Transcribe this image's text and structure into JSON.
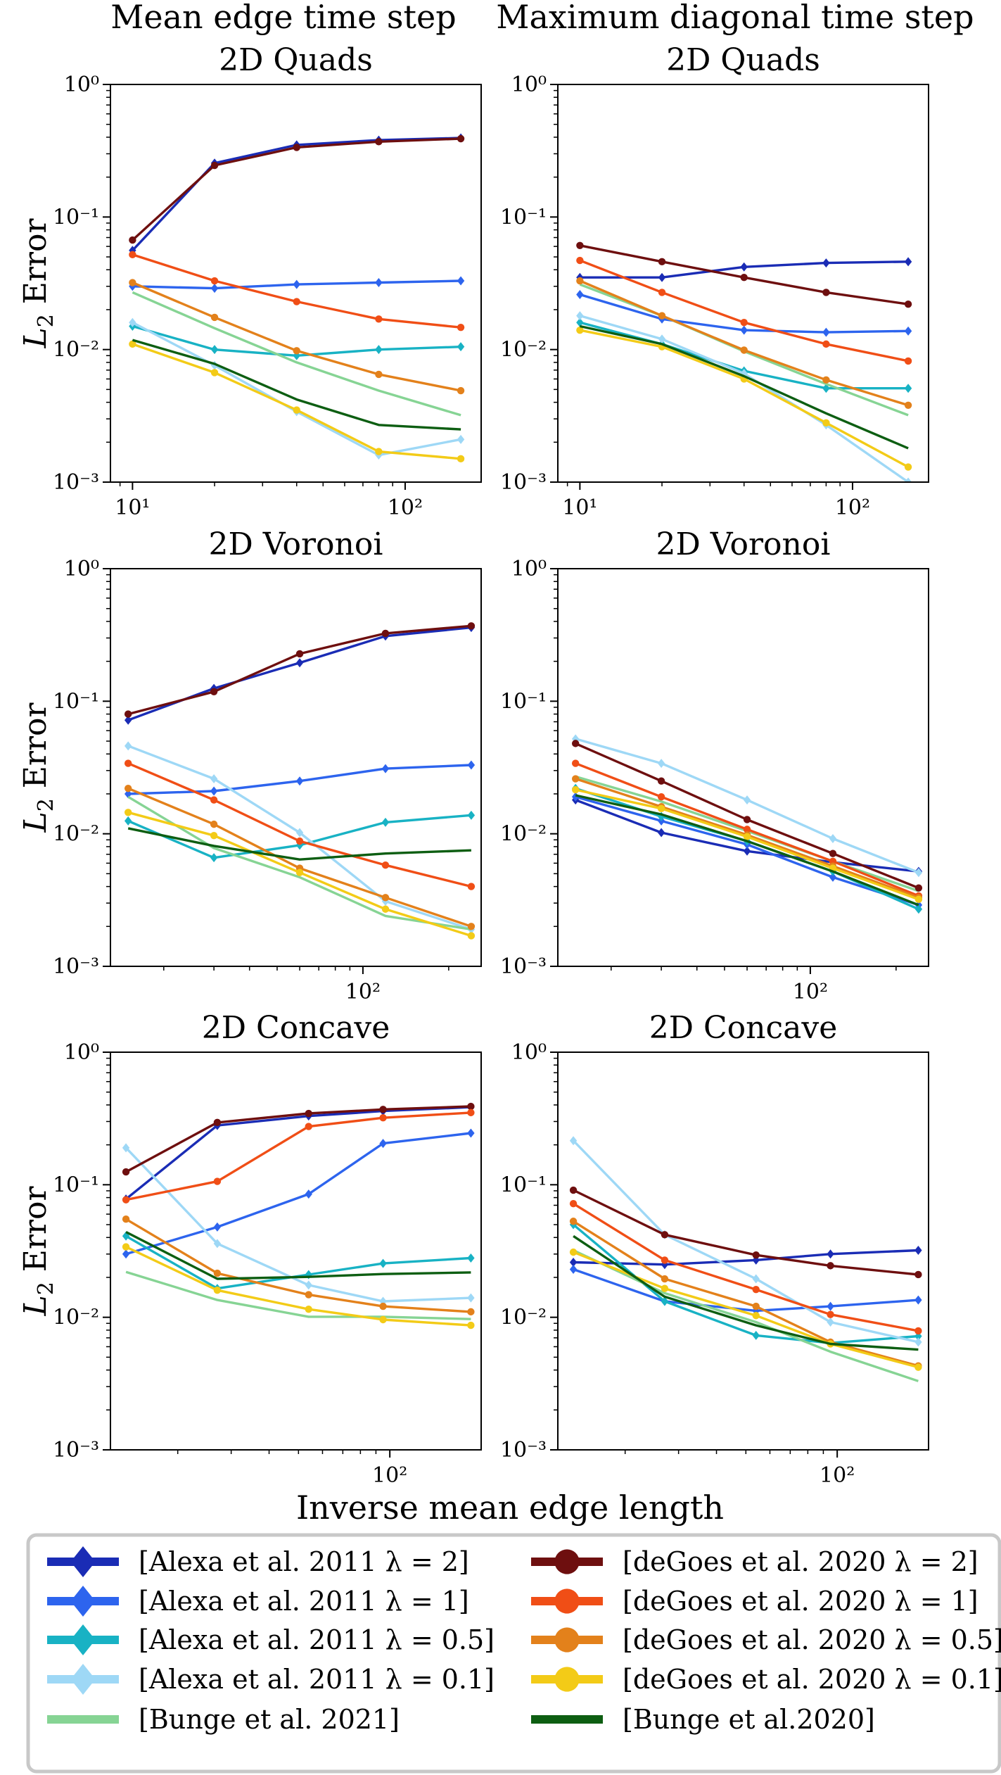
{
  "column_titles": [
    "Mean edge time step",
    "Maximum diagonal time step"
  ],
  "ylabel": "L2 Error",
  "xlabel": "Inverse mean edge length",
  "series_styles": [
    {
      "name": "[Alexa et al. 2011 λ = 2]",
      "color": "#1a2cb5",
      "marker": "diamond"
    },
    {
      "name": "[Alexa et al. 2011 λ = 1]",
      "color": "#2d64ee",
      "marker": "diamond"
    },
    {
      "name": "[Alexa et al. 2011 λ = 0.5]",
      "color": "#18b2c4",
      "marker": "diamond"
    },
    {
      "name": "[Alexa et al. 2011 λ = 0.1]",
      "color": "#9ed8f6",
      "marker": "diamond"
    },
    {
      "name": "[Bunge et al. 2021]",
      "color": "#86d494",
      "marker": "none"
    },
    {
      "name": "[deGoes et al. 2020 λ = 2]",
      "color": "#6e0f0f",
      "marker": "circle"
    },
    {
      "name": "[deGoes et al. 2020 λ = 1]",
      "color": "#f04e16",
      "marker": "circle"
    },
    {
      "name": "[deGoes et al. 2020 λ = 0.5]",
      "color": "#e3811b",
      "marker": "circle"
    },
    {
      "name": "[deGoes et al. 2020 λ = 0.1]",
      "color": "#f3cb17",
      "marker": "circle"
    },
    {
      "name": "[Bunge et al.2020]",
      "color": "#0d5e12",
      "marker": "none"
    }
  ],
  "chart_data": [
    {
      "type": "line",
      "title": "2D Quads",
      "xscale": "log",
      "yscale": "log",
      "xlim": [
        8.3,
        190
      ],
      "ylim": [
        0.001,
        1
      ],
      "xticks": [
        {
          "v": 10,
          "label": "10¹"
        },
        {
          "v": 100,
          "label": "10²"
        }
      ],
      "yticks": [
        {
          "v": 0.001,
          "label": "10⁻³"
        },
        {
          "v": 0.01,
          "label": "10⁻²"
        },
        {
          "v": 0.1,
          "label": "10⁻¹"
        },
        {
          "v": 1,
          "label": "10⁰"
        }
      ],
      "x": [
        10,
        20,
        40,
        80,
        160
      ],
      "series": [
        {
          "name": "[Alexa et al. 2011 λ = 2]",
          "values": [
            0.056,
            0.255,
            0.35,
            0.38,
            0.395
          ]
        },
        {
          "name": "[Alexa et al. 2011 λ = 1]",
          "values": [
            0.03,
            0.029,
            0.031,
            0.032,
            0.033
          ]
        },
        {
          "name": "[Alexa et al. 2011 λ = 0.5]",
          "values": [
            0.015,
            0.01,
            0.009,
            0.01,
            0.0105
          ]
        },
        {
          "name": "[Alexa et al. 2011 λ = 0.1]",
          "values": [
            0.016,
            0.0076,
            0.0034,
            0.0016,
            0.0021
          ]
        },
        {
          "name": "[Bunge et al. 2021]",
          "values": [
            0.027,
            0.0145,
            0.008,
            0.0049,
            0.0032
          ]
        },
        {
          "name": "[deGoes et al. 2020 λ = 2]",
          "values": [
            0.067,
            0.245,
            0.335,
            0.37,
            0.39
          ]
        },
        {
          "name": "[deGoes et al. 2020 λ = 1]",
          "values": [
            0.052,
            0.033,
            0.023,
            0.017,
            0.0147
          ]
        },
        {
          "name": "[deGoes et al. 2020 λ = 0.5]",
          "values": [
            0.032,
            0.0175,
            0.0098,
            0.0065,
            0.0049
          ]
        },
        {
          "name": "[deGoes et al. 2020 λ = 0.1]",
          "values": [
            0.011,
            0.0067,
            0.0035,
            0.0017,
            0.0015
          ]
        },
        {
          "name": "[Bunge et al.2020]",
          "values": [
            0.0118,
            0.0078,
            0.0042,
            0.0027,
            0.0025
          ]
        }
      ]
    },
    {
      "type": "line",
      "title": "2D Quads",
      "xscale": "log",
      "yscale": "log",
      "xlim": [
        8.3,
        190
      ],
      "ylim": [
        0.001,
        1
      ],
      "xticks": [
        {
          "v": 10,
          "label": "10¹"
        },
        {
          "v": 100,
          "label": "10²"
        }
      ],
      "yticks": [
        {
          "v": 0.001,
          "label": "10⁻³"
        },
        {
          "v": 0.01,
          "label": "10⁻²"
        },
        {
          "v": 0.1,
          "label": "10⁻¹"
        },
        {
          "v": 1,
          "label": "10⁰"
        }
      ],
      "x": [
        10,
        20,
        40,
        80,
        160
      ],
      "series": [
        {
          "name": "[Alexa et al. 2011 λ = 2]",
          "values": [
            0.035,
            0.035,
            0.042,
            0.045,
            0.046
          ]
        },
        {
          "name": "[Alexa et al. 2011 λ = 1]",
          "values": [
            0.026,
            0.017,
            0.014,
            0.0135,
            0.0138
          ]
        },
        {
          "name": "[Alexa et al. 2011 λ = 0.5]",
          "values": [
            0.016,
            0.011,
            0.0069,
            0.0051,
            0.0051
          ]
        },
        {
          "name": "[Alexa et al. 2011 λ = 0.1]",
          "values": [
            0.018,
            0.012,
            0.0066,
            0.0027,
            0.001
          ]
        },
        {
          "name": "[Bunge et al. 2021]",
          "values": [
            0.031,
            0.018,
            0.0097,
            0.0055,
            0.0032
          ]
        },
        {
          "name": "[deGoes et al. 2020 λ = 2]",
          "values": [
            0.061,
            0.046,
            0.035,
            0.027,
            0.022
          ]
        },
        {
          "name": "[deGoes et al. 2020 λ = 1]",
          "values": [
            0.047,
            0.027,
            0.016,
            0.011,
            0.0082
          ]
        },
        {
          "name": "[deGoes et al. 2020 λ = 0.5]",
          "values": [
            0.033,
            0.018,
            0.0099,
            0.0059,
            0.0038
          ]
        },
        {
          "name": "[deGoes et al. 2020 λ = 0.1]",
          "values": [
            0.014,
            0.0105,
            0.006,
            0.0028,
            0.0013
          ]
        },
        {
          "name": "[Bunge et al.2020]",
          "values": [
            0.015,
            0.011,
            0.0063,
            0.0033,
            0.0018
          ]
        }
      ]
    },
    {
      "type": "line",
      "title": "2D Voronoi",
      "xscale": "log",
      "yscale": "log",
      "xlim": [
        13,
        260
      ],
      "ylim": [
        0.001,
        1
      ],
      "xticks": [
        {
          "v": 100,
          "label": "10²"
        }
      ],
      "yticks": [
        {
          "v": 0.001,
          "label": "10⁻³"
        },
        {
          "v": 0.01,
          "label": "10⁻²"
        },
        {
          "v": 0.1,
          "label": "10⁻¹"
        },
        {
          "v": 1,
          "label": "10⁰"
        }
      ],
      "x": [
        15,
        30,
        60,
        120,
        240
      ],
      "series": [
        {
          "name": "[Alexa et al. 2011 λ = 2]",
          "values": [
            0.072,
            0.125,
            0.195,
            0.31,
            0.36
          ]
        },
        {
          "name": "[Alexa et al. 2011 λ = 1]",
          "values": [
            0.02,
            0.021,
            0.025,
            0.031,
            0.033
          ]
        },
        {
          "name": "[Alexa et al. 2011 λ = 0.5]",
          "values": [
            0.0125,
            0.0066,
            0.0082,
            0.0122,
            0.0138
          ]
        },
        {
          "name": "[Alexa et al. 2011 λ = 0.1]",
          "values": [
            0.046,
            0.026,
            0.0102,
            0.0031,
            0.0019
          ]
        },
        {
          "name": "[Bunge et al. 2021]",
          "values": [
            0.019,
            0.0078,
            0.0047,
            0.0024,
            0.0019
          ]
        },
        {
          "name": "[deGoes et al. 2020 λ = 2]",
          "values": [
            0.08,
            0.118,
            0.228,
            0.325,
            0.37
          ]
        },
        {
          "name": "[deGoes et al. 2020 λ = 1]",
          "values": [
            0.034,
            0.018,
            0.0088,
            0.0058,
            0.004
          ]
        },
        {
          "name": "[deGoes et al. 2020 λ = 0.5]",
          "values": [
            0.022,
            0.0118,
            0.0055,
            0.0033,
            0.002
          ]
        },
        {
          "name": "[deGoes et al. 2020 λ = 0.1]",
          "values": [
            0.0145,
            0.0097,
            0.0051,
            0.0027,
            0.0017
          ]
        },
        {
          "name": "[Bunge et al.2020]",
          "values": [
            0.011,
            0.0081,
            0.0064,
            0.0071,
            0.0075
          ]
        }
      ]
    },
    {
      "type": "line",
      "title": "2D Voronoi",
      "xscale": "log",
      "yscale": "log",
      "xlim": [
        13,
        260
      ],
      "ylim": [
        0.001,
        1
      ],
      "xticks": [
        {
          "v": 100,
          "label": "10²"
        }
      ],
      "yticks": [
        {
          "v": 0.001,
          "label": "10⁻³"
        },
        {
          "v": 0.01,
          "label": "10⁻²"
        },
        {
          "v": 0.1,
          "label": "10⁻¹"
        },
        {
          "v": 1,
          "label": "10⁰"
        }
      ],
      "x": [
        15,
        30,
        60,
        120,
        240
      ],
      "series": [
        {
          "name": "[Alexa et al. 2011 λ = 2]",
          "values": [
            0.018,
            0.0102,
            0.0074,
            0.0061,
            0.0052
          ]
        },
        {
          "name": "[Alexa et al. 2011 λ = 1]",
          "values": [
            0.019,
            0.0125,
            0.0083,
            0.0047,
            0.0029
          ]
        },
        {
          "name": "[Alexa et al. 2011 λ = 0.5]",
          "values": [
            0.022,
            0.0135,
            0.0088,
            0.0052,
            0.0027
          ]
        },
        {
          "name": "[Alexa et al. 2011 λ = 0.1]",
          "values": [
            0.052,
            0.034,
            0.018,
            0.0092,
            0.0051
          ]
        },
        {
          "name": "[Bunge et al. 2021]",
          "values": [
            0.027,
            0.0175,
            0.0105,
            0.0062,
            0.0037
          ]
        },
        {
          "name": "[deGoes et al. 2020 λ = 2]",
          "values": [
            0.048,
            0.025,
            0.0128,
            0.0071,
            0.0039
          ]
        },
        {
          "name": "[deGoes et al. 2020 λ = 1]",
          "values": [
            0.034,
            0.019,
            0.0108,
            0.0062,
            0.0034
          ]
        },
        {
          "name": "[deGoes et al. 2020 λ = 0.5]",
          "values": [
            0.026,
            0.016,
            0.0098,
            0.0057,
            0.0033
          ]
        },
        {
          "name": "[deGoes et al. 2020 λ = 0.1]",
          "values": [
            0.0215,
            0.0155,
            0.0095,
            0.0055,
            0.0032
          ]
        },
        {
          "name": "[Bunge et al.2020]",
          "values": [
            0.0195,
            0.014,
            0.0088,
            0.0052,
            0.0029
          ]
        }
      ]
    },
    {
      "type": "line",
      "title": "2D Concave",
      "xscale": "log",
      "yscale": "log",
      "xlim": [
        12,
        200
      ],
      "ylim": [
        0.001,
        1
      ],
      "xticks": [
        {
          "v": 100,
          "label": "10²"
        }
      ],
      "yticks": [
        {
          "v": 0.001,
          "label": "10⁻³"
        },
        {
          "v": 0.01,
          "label": "10⁻²"
        },
        {
          "v": 0.1,
          "label": "10⁻¹"
        },
        {
          "v": 1,
          "label": "10⁰"
        }
      ],
      "x": [
        13.5,
        27,
        54,
        95,
        185
      ],
      "series": [
        {
          "name": "[Alexa et al. 2011 λ = 2]",
          "values": [
            0.078,
            0.28,
            0.33,
            0.36,
            0.385
          ]
        },
        {
          "name": "[Alexa et al. 2011 λ = 1]",
          "values": [
            0.03,
            0.048,
            0.085,
            0.205,
            0.245
          ]
        },
        {
          "name": "[Alexa et al. 2011 λ = 0.5]",
          "values": [
            0.041,
            0.0165,
            0.021,
            0.0255,
            0.028
          ]
        },
        {
          "name": "[Alexa et al. 2011 λ = 0.1]",
          "values": [
            0.19,
            0.036,
            0.0175,
            0.0132,
            0.014
          ]
        },
        {
          "name": "[Bunge et al. 2021]",
          "values": [
            0.022,
            0.0135,
            0.0101,
            0.0101,
            0.0097
          ]
        },
        {
          "name": "[deGoes et al. 2020 λ = 2]",
          "values": [
            0.125,
            0.295,
            0.345,
            0.37,
            0.39
          ]
        },
        {
          "name": "[deGoes et al. 2020 λ = 1]",
          "values": [
            0.077,
            0.106,
            0.275,
            0.32,
            0.35
          ]
        },
        {
          "name": "[deGoes et al. 2020 λ = 0.5]",
          "values": [
            0.055,
            0.0215,
            0.0148,
            0.0121,
            0.011
          ]
        },
        {
          "name": "[deGoes et al. 2020 λ = 0.1]",
          "values": [
            0.034,
            0.016,
            0.0115,
            0.0096,
            0.0087
          ]
        },
        {
          "name": "[Bunge et al.2020]",
          "values": [
            0.044,
            0.0195,
            0.0202,
            0.0212,
            0.0218
          ]
        }
      ]
    },
    {
      "type": "line",
      "title": "2D Concave",
      "xscale": "log",
      "yscale": "log",
      "xlim": [
        12,
        200
      ],
      "ylim": [
        0.001,
        1
      ],
      "xticks": [
        {
          "v": 100,
          "label": "10²"
        }
      ],
      "yticks": [
        {
          "v": 0.001,
          "label": "10⁻³"
        },
        {
          "v": 0.01,
          "label": "10⁻²"
        },
        {
          "v": 0.1,
          "label": "10⁻¹"
        },
        {
          "v": 1,
          "label": "10⁰"
        }
      ],
      "x": [
        13.5,
        27,
        54,
        95,
        185
      ],
      "series": [
        {
          "name": "[Alexa et al. 2011 λ = 2]",
          "values": [
            0.026,
            0.025,
            0.027,
            0.03,
            0.032
          ]
        },
        {
          "name": "[Alexa et al. 2011 λ = 1]",
          "values": [
            0.023,
            0.0132,
            0.0112,
            0.0121,
            0.0135
          ]
        },
        {
          "name": "[Alexa et al. 2011 λ = 0.5]",
          "values": [
            0.05,
            0.0132,
            0.0073,
            0.0064,
            0.0072
          ]
        },
        {
          "name": "[Alexa et al. 2011 λ = 0.1]",
          "values": [
            0.215,
            0.042,
            0.0195,
            0.0092,
            0.0065
          ]
        },
        {
          "name": "[Bunge et al. 2021]",
          "values": [
            0.032,
            0.0152,
            0.0092,
            0.0055,
            0.0033
          ]
        },
        {
          "name": "[deGoes et al. 2020 λ = 2]",
          "values": [
            0.091,
            0.042,
            0.0295,
            0.0245,
            0.021
          ]
        },
        {
          "name": "[deGoes et al. 2020 λ = 1]",
          "values": [
            0.072,
            0.027,
            0.0162,
            0.0105,
            0.0079
          ]
        },
        {
          "name": "[deGoes et al. 2020 λ = 0.5]",
          "values": [
            0.053,
            0.0195,
            0.0121,
            0.0065,
            0.0043
          ]
        },
        {
          "name": "[deGoes et al. 2020 λ = 0.1]",
          "values": [
            0.031,
            0.0165,
            0.0103,
            0.0063,
            0.0042
          ]
        },
        {
          "name": "[Bunge et al.2020]",
          "values": [
            0.041,
            0.0143,
            0.0087,
            0.0063,
            0.0057
          ]
        }
      ]
    }
  ]
}
